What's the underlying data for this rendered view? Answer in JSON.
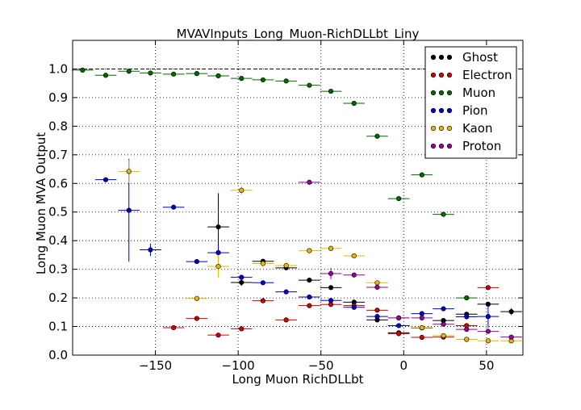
{
  "chart_data": {
    "type": "scatter",
    "title": "MVAVInputs_Long_Muon-RichDLLbt_Liny",
    "xlabel": "Long Muon RichDLLbt",
    "ylabel": "Long Muon MVA Output",
    "xlim": [
      -200,
      72
    ],
    "ylim": [
      0.0,
      1.1
    ],
    "x_ticks": [
      -150,
      -100,
      -50,
      0,
      50
    ],
    "y_ticks": [
      0.0,
      0.1,
      0.2,
      0.3,
      0.4,
      0.5,
      0.6,
      0.7,
      0.8,
      0.9,
      1.0
    ],
    "x_tick_labels": [
      "−150",
      "−100",
      "−50",
      "0",
      "50"
    ],
    "y_tick_labels": [
      "0.0",
      "0.1",
      "0.2",
      "0.3",
      "0.4",
      "0.5",
      "0.6",
      "0.7",
      "0.8",
      "0.9",
      "1.0"
    ],
    "grid": true,
    "reference_line_y": 1.0,
    "legend_position": "top-right",
    "series": [
      {
        "name": "Ghost",
        "color": "#000000",
        "points": [
          {
            "x": -112,
            "y": 0.448,
            "xerr": 6.5,
            "yerr": 0.118
          },
          {
            "x": -98,
            "y": 0.254,
            "xerr": 6.5,
            "yerr": 0.012
          },
          {
            "x": -85,
            "y": 0.328,
            "xerr": 6.5,
            "yerr": 0.008
          },
          {
            "x": -71,
            "y": 0.305,
            "xerr": 6.5,
            "yerr": 0.006
          },
          {
            "x": -57,
            "y": 0.262,
            "xerr": 6.5,
            "yerr": 0.005
          },
          {
            "x": -44,
            "y": 0.236,
            "xerr": 6.5,
            "yerr": 0.004
          },
          {
            "x": -30,
            "y": 0.185,
            "xerr": 6.5,
            "yerr": 0.004
          },
          {
            "x": -16,
            "y": 0.123,
            "xerr": 6.5,
            "yerr": 0.003
          },
          {
            "x": -3,
            "y": 0.078,
            "xerr": 6.5,
            "yerr": 0.002
          },
          {
            "x": 11,
            "y": 0.095,
            "xerr": 6.5,
            "yerr": 0.003
          },
          {
            "x": 24,
            "y": 0.121,
            "xerr": 6.5,
            "yerr": 0.003
          },
          {
            "x": 38,
            "y": 0.143,
            "xerr": 6.5,
            "yerr": 0.004
          },
          {
            "x": 51,
            "y": 0.178,
            "xerr": 6.5,
            "yerr": 0.005
          },
          {
            "x": 65,
            "y": 0.152,
            "xerr": 6.5,
            "yerr": 0.012
          }
        ]
      },
      {
        "name": "Electron",
        "color": "#cc0000",
        "points": [
          {
            "x": -139,
            "y": 0.096,
            "xerr": 6.5,
            "yerr": 0.004
          },
          {
            "x": -125,
            "y": 0.128,
            "xerr": 6.5,
            "yerr": 0.006
          },
          {
            "x": -112,
            "y": 0.07,
            "xerr": 6.5,
            "yerr": 0.004
          },
          {
            "x": -98,
            "y": 0.092,
            "xerr": 6.5,
            "yerr": 0.004
          },
          {
            "x": -85,
            "y": 0.19,
            "xerr": 6.5,
            "yerr": 0.005
          },
          {
            "x": -71,
            "y": 0.123,
            "xerr": 6.5,
            "yerr": 0.004
          },
          {
            "x": -57,
            "y": 0.173,
            "xerr": 6.5,
            "yerr": 0.004
          },
          {
            "x": -44,
            "y": 0.177,
            "xerr": 6.5,
            "yerr": 0.004
          },
          {
            "x": -30,
            "y": 0.173,
            "xerr": 6.5,
            "yerr": 0.004
          },
          {
            "x": -16,
            "y": 0.157,
            "xerr": 6.5,
            "yerr": 0.004
          },
          {
            "x": -3,
            "y": 0.075,
            "xerr": 6.5,
            "yerr": 0.003
          },
          {
            "x": 11,
            "y": 0.062,
            "xerr": 6.5,
            "yerr": 0.003
          },
          {
            "x": 24,
            "y": 0.063,
            "xerr": 6.5,
            "yerr": 0.003
          },
          {
            "x": 38,
            "y": 0.103,
            "xerr": 6.5,
            "yerr": 0.004
          },
          {
            "x": 51,
            "y": 0.236,
            "xerr": 6.5,
            "yerr": 0.006
          }
        ]
      },
      {
        "name": "Muon",
        "color": "#006600",
        "points": [
          {
            "x": -194,
            "y": 0.996,
            "xerr": 6.5,
            "yerr": 0.002
          },
          {
            "x": -180,
            "y": 0.978,
            "xerr": 6.5,
            "yerr": 0.002
          },
          {
            "x": -166,
            "y": 0.992,
            "xerr": 6.5,
            "yerr": 0.002
          },
          {
            "x": -153,
            "y": 0.986,
            "xerr": 6.5,
            "yerr": 0.002
          },
          {
            "x": -139,
            "y": 0.982,
            "xerr": 6.5,
            "yerr": 0.002
          },
          {
            "x": -125,
            "y": 0.984,
            "xerr": 6.5,
            "yerr": 0.002
          },
          {
            "x": -112,
            "y": 0.976,
            "xerr": 6.5,
            "yerr": 0.002
          },
          {
            "x": -98,
            "y": 0.967,
            "xerr": 6.5,
            "yerr": 0.002
          },
          {
            "x": -85,
            "y": 0.962,
            "xerr": 6.5,
            "yerr": 0.002
          },
          {
            "x": -71,
            "y": 0.958,
            "xerr": 6.5,
            "yerr": 0.002
          },
          {
            "x": -57,
            "y": 0.943,
            "xerr": 6.5,
            "yerr": 0.002
          },
          {
            "x": -44,
            "y": 0.922,
            "xerr": 6.5,
            "yerr": 0.002
          },
          {
            "x": -30,
            "y": 0.88,
            "xerr": 6.5,
            "yerr": 0.003
          },
          {
            "x": -16,
            "y": 0.765,
            "xerr": 6.5,
            "yerr": 0.003
          },
          {
            "x": -3,
            "y": 0.547,
            "xerr": 6.5,
            "yerr": 0.003
          },
          {
            "x": 11,
            "y": 0.63,
            "xerr": 6.5,
            "yerr": 0.003
          },
          {
            "x": 24,
            "y": 0.492,
            "xerr": 6.5,
            "yerr": 0.003
          },
          {
            "x": 38,
            "y": 0.2,
            "xerr": 6.5,
            "yerr": 0.003
          }
        ]
      },
      {
        "name": "Pion",
        "color": "#0000cc",
        "points": [
          {
            "x": -180,
            "y": 0.613,
            "xerr": 6.5,
            "yerr": 0.004
          },
          {
            "x": -166,
            "y": 0.506,
            "xerr": 6.5,
            "yerr": 0.18
          },
          {
            "x": -153,
            "y": 0.368,
            "xerr": 6.5,
            "yerr": 0.022
          },
          {
            "x": -139,
            "y": 0.517,
            "xerr": 6.5,
            "yerr": 0.008
          },
          {
            "x": -125,
            "y": 0.327,
            "xerr": 6.5,
            "yerr": 0.004
          },
          {
            "x": -112,
            "y": 0.358,
            "xerr": 6.5,
            "yerr": 0.03
          },
          {
            "x": -98,
            "y": 0.272,
            "xerr": 6.5,
            "yerr": 0.006
          },
          {
            "x": -85,
            "y": 0.253,
            "xerr": 6.5,
            "yerr": 0.004
          },
          {
            "x": -71,
            "y": 0.221,
            "xerr": 6.5,
            "yerr": 0.003
          },
          {
            "x": -57,
            "y": 0.203,
            "xerr": 6.5,
            "yerr": 0.003
          },
          {
            "x": -44,
            "y": 0.191,
            "xerr": 6.5,
            "yerr": 0.003
          },
          {
            "x": -30,
            "y": 0.167,
            "xerr": 6.5,
            "yerr": 0.003
          },
          {
            "x": -16,
            "y": 0.135,
            "xerr": 6.5,
            "yerr": 0.003
          },
          {
            "x": -3,
            "y": 0.103,
            "xerr": 6.5,
            "yerr": 0.003
          },
          {
            "x": 11,
            "y": 0.145,
            "xerr": 6.5,
            "yerr": 0.003
          },
          {
            "x": 24,
            "y": 0.162,
            "xerr": 6.5,
            "yerr": 0.004
          },
          {
            "x": 38,
            "y": 0.134,
            "xerr": 6.5,
            "yerr": 0.004
          },
          {
            "x": 51,
            "y": 0.135,
            "xerr": 6.5,
            "yerr": 0.04
          }
        ]
      },
      {
        "name": "Kaon",
        "color": "#e6b800",
        "points": [
          {
            "x": -166,
            "y": 0.642,
            "xerr": 6.5,
            "yerr": 0.04
          },
          {
            "x": -125,
            "y": 0.198,
            "xerr": 6.5,
            "yerr": 0.006
          },
          {
            "x": -112,
            "y": 0.31,
            "xerr": 6.5,
            "yerr": 0.04
          },
          {
            "x": -98,
            "y": 0.576,
            "xerr": 6.5,
            "yerr": 0.015
          },
          {
            "x": -85,
            "y": 0.32,
            "xerr": 6.5,
            "yerr": 0.004
          },
          {
            "x": -71,
            "y": 0.313,
            "xerr": 6.5,
            "yerr": 0.004
          },
          {
            "x": -57,
            "y": 0.365,
            "xerr": 6.5,
            "yerr": 0.004
          },
          {
            "x": -44,
            "y": 0.373,
            "xerr": 6.5,
            "yerr": 0.004
          },
          {
            "x": -30,
            "y": 0.347,
            "xerr": 6.5,
            "yerr": 0.004
          },
          {
            "x": -16,
            "y": 0.253,
            "xerr": 6.5,
            "yerr": 0.004
          },
          {
            "x": -3,
            "y": 0.13,
            "xerr": 6.5,
            "yerr": 0.003
          },
          {
            "x": 11,
            "y": 0.096,
            "xerr": 6.5,
            "yerr": 0.003
          },
          {
            "x": 24,
            "y": 0.068,
            "xerr": 6.5,
            "yerr": 0.003
          },
          {
            "x": 38,
            "y": 0.055,
            "xerr": 6.5,
            "yerr": 0.003
          },
          {
            "x": 51,
            "y": 0.05,
            "xerr": 6.5,
            "yerr": 0.003
          },
          {
            "x": 65,
            "y": 0.05,
            "xerr": 6.5,
            "yerr": 0.003
          }
        ]
      },
      {
        "name": "Proton",
        "color": "#990099",
        "points": [
          {
            "x": -57,
            "y": 0.604,
            "xerr": 6.5,
            "yerr": 0.005
          },
          {
            "x": -44,
            "y": 0.285,
            "xerr": 6.5,
            "yerr": 0.02
          },
          {
            "x": -30,
            "y": 0.28,
            "xerr": 6.5,
            "yerr": 0.005
          },
          {
            "x": -16,
            "y": 0.237,
            "xerr": 6.5,
            "yerr": 0.005
          },
          {
            "x": -3,
            "y": 0.13,
            "xerr": 6.5,
            "yerr": 0.004
          },
          {
            "x": 11,
            "y": 0.13,
            "xerr": 6.5,
            "yerr": 0.004
          },
          {
            "x": 24,
            "y": 0.108,
            "xerr": 6.5,
            "yerr": 0.004
          },
          {
            "x": 38,
            "y": 0.09,
            "xerr": 6.5,
            "yerr": 0.004
          },
          {
            "x": 51,
            "y": 0.083,
            "xerr": 6.5,
            "yerr": 0.004
          },
          {
            "x": 65,
            "y": 0.063,
            "xerr": 6.5,
            "yerr": 0.004
          }
        ]
      }
    ]
  }
}
